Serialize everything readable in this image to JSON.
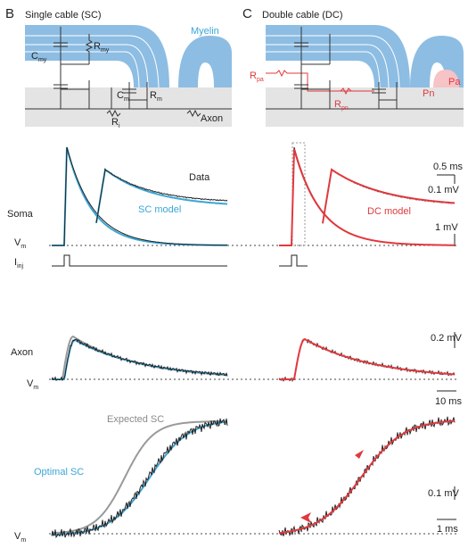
{
  "panel_b": {
    "letter": "B",
    "title": "Single cable (SC)",
    "myelin": "Myelin",
    "c_my": {
      "main": "C",
      "sub": "my"
    },
    "r_my": {
      "main": "R",
      "sub": "my"
    },
    "c_m": {
      "main": "C",
      "sub": "m"
    },
    "r_m": {
      "main": "R",
      "sub": "m"
    },
    "r_i": {
      "main": "R",
      "sub": "i"
    },
    "axon": "Axon",
    "soma": "Soma",
    "data_label": "Data",
    "model_label": "SC model",
    "vm_soma": {
      "main": "V",
      "sub": "m"
    },
    "i_inj": {
      "main": "I",
      "sub": "inj"
    },
    "axon_trace": "Axon",
    "vm_axon": {
      "main": "V",
      "sub": "m"
    },
    "expected": "Expected SC",
    "optimal": "Optimal SC",
    "vm_bottom": {
      "main": "V",
      "sub": "m"
    }
  },
  "panel_c": {
    "letter": "C",
    "title": "Double cable (DC)",
    "r_pa": {
      "main": "R",
      "sub": "pa"
    },
    "r_pn": {
      "main": "R",
      "sub": "pn"
    },
    "pa": "Pa",
    "pn": "Pn",
    "model_label": "DC model",
    "scale_soma_inset_t": "0.5 ms",
    "scale_soma_inset_v": "0.1 mV",
    "scale_soma_v": "1 mV",
    "scale_axon_v": "0.2 mV",
    "scale_axon_t": "10 ms",
    "scale_bottom_v": "0.1 mV",
    "scale_bottom_t": "1 ms"
  }
}
